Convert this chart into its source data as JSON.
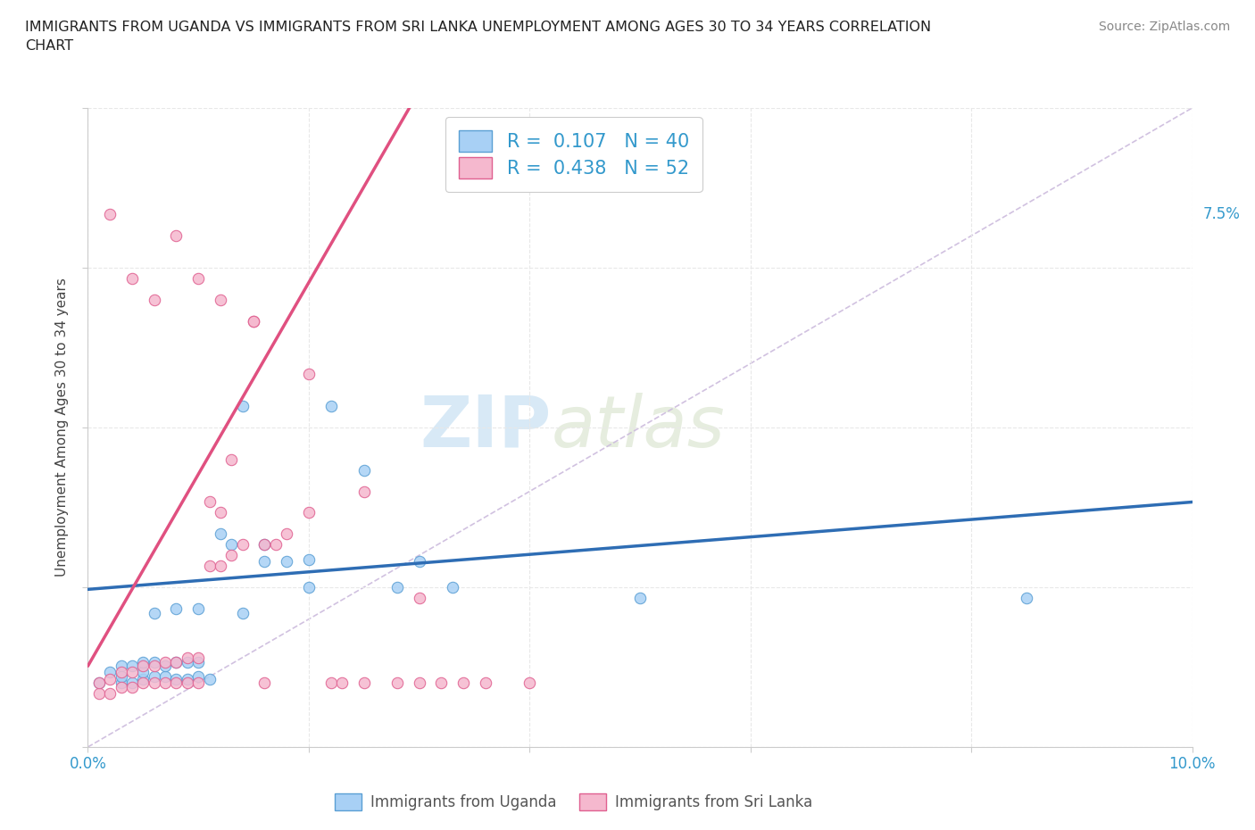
{
  "title": "IMMIGRANTS FROM UGANDA VS IMMIGRANTS FROM SRI LANKA UNEMPLOYMENT AMONG AGES 30 TO 34 YEARS CORRELATION\nCHART",
  "source": "Source: ZipAtlas.com",
  "ylabel": "Unemployment Among Ages 30 to 34 years",
  "legend_labels": [
    "Immigrants from Uganda",
    "Immigrants from Sri Lanka"
  ],
  "watermark_zip": "ZIP",
  "watermark_atlas": "atlas",
  "xlim": [
    0.0,
    0.1
  ],
  "ylim": [
    0.0,
    0.3
  ],
  "xtick_vals": [
    0.0,
    0.02,
    0.04,
    0.06,
    0.08,
    0.1
  ],
  "ytick_vals": [
    0.0,
    0.075,
    0.15,
    0.225,
    0.3
  ],
  "R_uganda": 0.107,
  "N_uganda": 40,
  "R_srilanka": 0.438,
  "N_srilanka": 52,
  "uganda_fill": "#a8d0f5",
  "srilanka_fill": "#f5b8ce",
  "uganda_edge": "#5a9fd4",
  "srilanka_edge": "#e06090",
  "uganda_line": "#2e6db4",
  "srilanka_line": "#e05080",
  "diagonal_color": "#ccbbdd",
  "grid_color": "#e8e8e8",
  "tick_label_color": "#3399cc",
  "uganda_line_x0": 0.0,
  "uganda_line_y0": 0.074,
  "uganda_line_x1": 0.1,
  "uganda_line_y1": 0.115,
  "srilanka_line_x0": 0.0,
  "srilanka_line_y0": 0.0,
  "srilanka_line_x1": 0.1,
  "srilanka_line_y1": 0.3,
  "uganda_scatter_x": [
    0.001,
    0.002,
    0.003,
    0.003,
    0.004,
    0.004,
    0.005,
    0.005,
    0.005,
    0.006,
    0.006,
    0.007,
    0.007,
    0.008,
    0.008,
    0.009,
    0.009,
    0.01,
    0.01,
    0.011,
    0.012,
    0.013,
    0.014,
    0.016,
    0.018,
    0.02,
    0.022,
    0.025,
    0.03,
    0.033,
    0.003,
    0.006,
    0.008,
    0.01,
    0.014,
    0.016,
    0.02,
    0.028,
    0.05,
    0.085
  ],
  "uganda_scatter_y": [
    0.03,
    0.035,
    0.03,
    0.038,
    0.03,
    0.038,
    0.032,
    0.035,
    0.04,
    0.033,
    0.04,
    0.033,
    0.038,
    0.032,
    0.04,
    0.032,
    0.04,
    0.033,
    0.04,
    0.032,
    0.1,
    0.095,
    0.16,
    0.095,
    0.087,
    0.088,
    0.16,
    0.13,
    0.087,
    0.075,
    0.033,
    0.063,
    0.065,
    0.065,
    0.063,
    0.087,
    0.075,
    0.075,
    0.07,
    0.07
  ],
  "srilanka_scatter_x": [
    0.001,
    0.001,
    0.002,
    0.002,
    0.003,
    0.003,
    0.004,
    0.004,
    0.005,
    0.005,
    0.006,
    0.006,
    0.007,
    0.007,
    0.008,
    0.008,
    0.009,
    0.009,
    0.01,
    0.01,
    0.011,
    0.011,
    0.012,
    0.012,
    0.013,
    0.013,
    0.014,
    0.015,
    0.016,
    0.017,
    0.018,
    0.02,
    0.022,
    0.025,
    0.028,
    0.03,
    0.032,
    0.034,
    0.036,
    0.04,
    0.002,
    0.004,
    0.006,
    0.008,
    0.01,
    0.012,
    0.015,
    0.02,
    0.025,
    0.03,
    0.016,
    0.023
  ],
  "srilanka_scatter_y": [
    0.025,
    0.03,
    0.025,
    0.032,
    0.028,
    0.035,
    0.028,
    0.035,
    0.03,
    0.038,
    0.03,
    0.038,
    0.03,
    0.04,
    0.03,
    0.04,
    0.03,
    0.042,
    0.03,
    0.042,
    0.085,
    0.115,
    0.085,
    0.11,
    0.09,
    0.135,
    0.095,
    0.2,
    0.095,
    0.095,
    0.1,
    0.11,
    0.03,
    0.03,
    0.03,
    0.03,
    0.03,
    0.03,
    0.03,
    0.03,
    0.25,
    0.22,
    0.21,
    0.24,
    0.22,
    0.21,
    0.2,
    0.175,
    0.12,
    0.07,
    0.03,
    0.03
  ]
}
